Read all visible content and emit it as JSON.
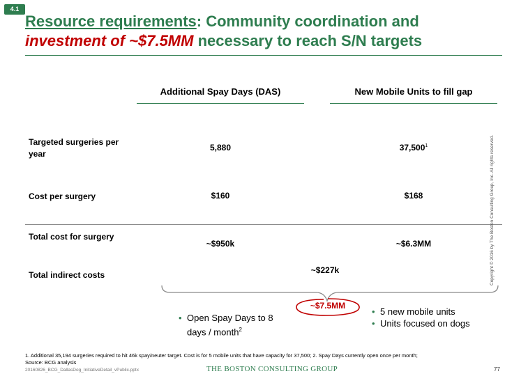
{
  "section_badge": "4.1",
  "title": {
    "part1": "Resource requirements",
    "part2": ": Community coordination and",
    "part3": "investment of ~$7.5MM",
    "part4": " necessary to reach S/N targets"
  },
  "columns": {
    "das": "Additional Spay Days (DAS)",
    "mobile": "New Mobile Units to fill gap"
  },
  "rows": [
    {
      "label": "Targeted surgeries per year",
      "das": "5,880",
      "mobile": "37,500",
      "mobile_sup": "1"
    },
    {
      "label": "Cost per surgery",
      "das": "$160",
      "mobile": "$168"
    },
    {
      "label": "Total cost for surgery",
      "das": "~$950k",
      "mobile": "~$6.3MM"
    }
  ],
  "indirect": {
    "label": "Total indirect costs",
    "value": "~$227k"
  },
  "total": "~$7.5MM",
  "das_bullets": [
    {
      "text": "Open Spay Days to 8 days / month",
      "sup": "2"
    }
  ],
  "mobile_bullets": [
    {
      "text": "5 new mobile units"
    },
    {
      "text": "Units focused on dogs"
    }
  ],
  "bullet_glyph": "•",
  "footnote": "1. Additional 35,194 surgeries required to hit 46k spay/neuter target. Cost is for 5 mobile units that have capacity for 37,500; 2. Spay Days currently open once per month;",
  "source": "Source: BCG analysis",
  "filename": "20160826_BCG_DallasDog_InitiativeDetail_vPublic.pptx",
  "brand": "THE BOSTON CONSULTING GROUP",
  "page_number": "77",
  "copyright": "Copyright © 2016 by The Boston Consulting Group, Inc. All rights reserved.",
  "colors": {
    "green": "#2e7d4f",
    "red": "#c00000"
  }
}
